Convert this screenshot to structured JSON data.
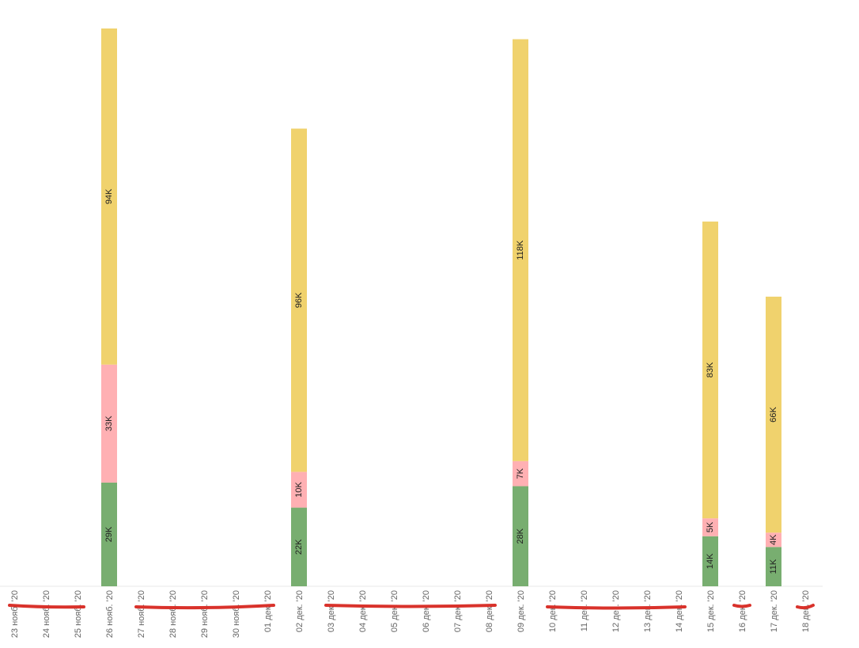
{
  "chart_data": {
    "type": "bar",
    "stacked": true,
    "orientation": "vertical",
    "categories": [
      "23 нояб. '20",
      "24 нояб. '20",
      "25 нояб. '20",
      "26 нояб. '20",
      "27 нояб. '20",
      "28 нояб. '20",
      "29 нояб. '20",
      "30 нояб. '20",
      "01 дек. '20",
      "02 дек. '20",
      "03 дек. '20",
      "04 дек. '20",
      "05 дек. '20",
      "06 дек. '20",
      "07 дек. '20",
      "08 дек. '20",
      "09 дек. '20",
      "10 дек. '20",
      "11 дек. '20",
      "12 дек. '20",
      "13 дек. '20",
      "14 дек. '20",
      "15 дек. '20",
      "16 дек. '20",
      "17 дек. '20",
      "18 дек. '20"
    ],
    "series": [
      {
        "color": "#78ae70",
        "values": [
          0,
          0,
          0,
          29,
          0,
          0,
          0,
          0,
          0,
          22,
          0,
          0,
          0,
          0,
          0,
          0,
          28,
          0,
          0,
          0,
          0,
          0,
          14,
          0,
          11,
          0
        ],
        "labels": [
          "",
          "",
          "",
          "29K",
          "",
          "",
          "",
          "",
          "",
          "22K",
          "",
          "",
          "",
          "",
          "",
          "",
          "28K",
          "",
          "",
          "",
          "",
          "",
          "14K",
          "",
          "11K",
          ""
        ]
      },
      {
        "color": "#ffb0b3",
        "values": [
          0,
          0,
          0,
          33,
          0,
          0,
          0,
          0,
          0,
          10,
          0,
          0,
          0,
          0,
          0,
          0,
          7,
          0,
          0,
          0,
          0,
          0,
          5,
          0,
          4,
          0
        ],
        "labels": [
          "",
          "",
          "",
          "33K",
          "",
          "",
          "",
          "",
          "",
          "10K",
          "",
          "",
          "",
          "",
          "",
          "",
          "7K",
          "",
          "",
          "",
          "",
          "",
          "5K",
          "",
          "4K",
          ""
        ]
      },
      {
        "color": "#f0d26d",
        "values": [
          0,
          0,
          0,
          94,
          0,
          0,
          0,
          0,
          0,
          96,
          0,
          0,
          0,
          0,
          0,
          0,
          118,
          0,
          0,
          0,
          0,
          0,
          83,
          0,
          66,
          0
        ],
        "labels": [
          "",
          "",
          "",
          "94K",
          "",
          "",
          "",
          "",
          "",
          "96K",
          "",
          "",
          "",
          "",
          "",
          "",
          "118K",
          "",
          "",
          "",
          "",
          "",
          "83K",
          "",
          "66K",
          ""
        ]
      }
    ],
    "value_unit": "K",
    "ylim": [
      0,
      156
    ],
    "grid": false,
    "legend": "none",
    "annotations": [
      {
        "type": "red-strikethrough-strokes",
        "color": "#d9322b",
        "over_categories": [
          [
            "23 нояб. '20",
            "25 нояб. '20"
          ],
          [
            "27 нояб. '20",
            "01 дек. '20"
          ],
          [
            "03 дек. '20",
            "08 дек. '20"
          ],
          [
            "10 дек. '20",
            "14 дек. '20"
          ],
          [
            "16 дек. '20",
            "16 дек. '20"
          ],
          [
            "18 дек. '20",
            "18 дек. '20"
          ]
        ]
      }
    ]
  }
}
